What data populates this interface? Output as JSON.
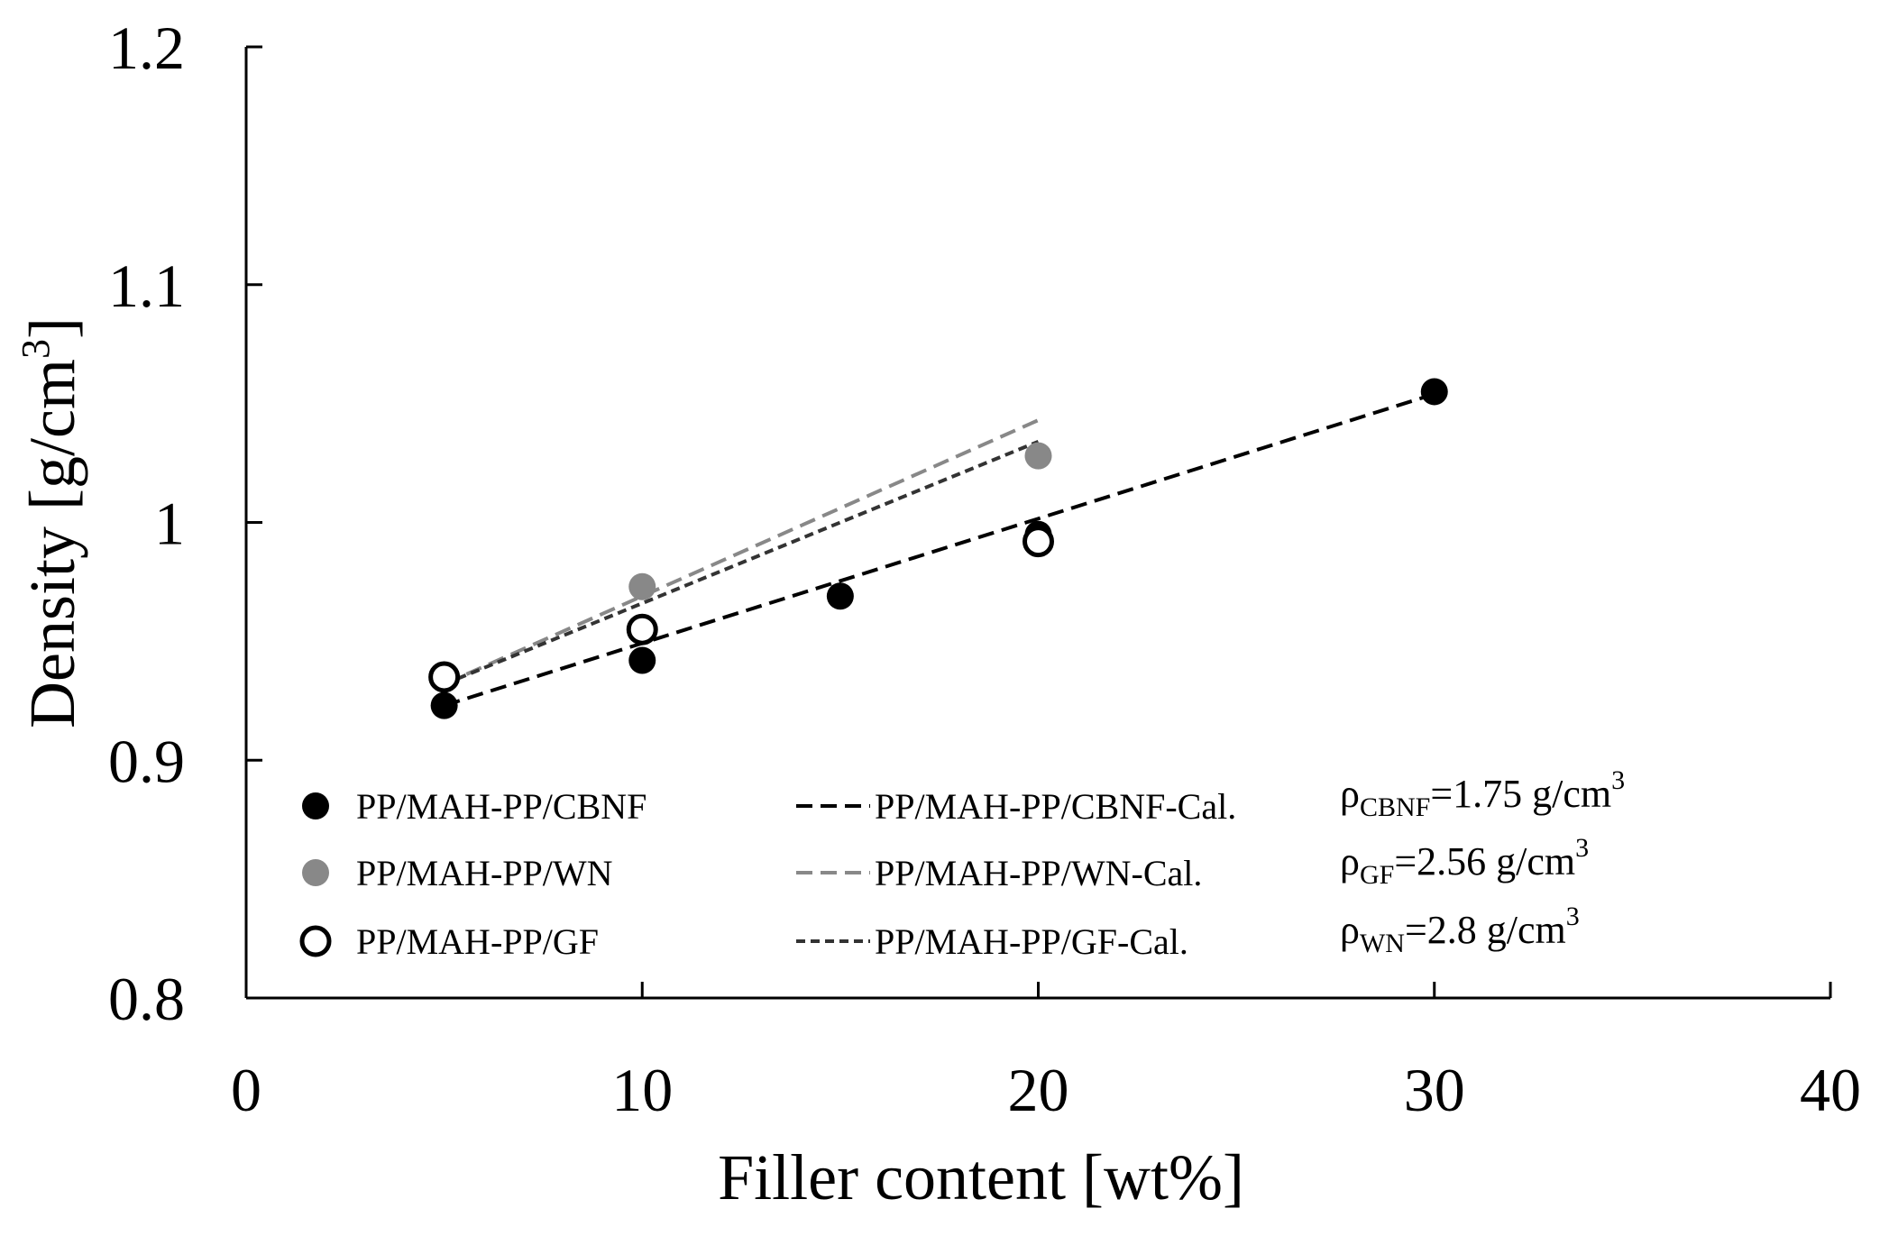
{
  "chart_data": {
    "type": "scatter",
    "xlabel": "Filler content [wt%]",
    "ylabel_main": "Density [g/cm",
    "ylabel_sup": "3",
    "ylabel_end": "]",
    "xlim": [
      0,
      40
    ],
    "ylim": [
      0.8,
      1.2
    ],
    "x_ticks": [
      0,
      10,
      20,
      30,
      40
    ],
    "x_tick_labels": [
      "0",
      "10",
      "20",
      "30",
      "40"
    ],
    "y_ticks": [
      0.8,
      0.9,
      1.0,
      1.1,
      1.2
    ],
    "y_tick_labels": [
      "0.8",
      "0.9",
      "1",
      "1.1",
      "1.2"
    ],
    "grid": false,
    "legend_position": "bottom-left, inside plot",
    "series": [
      {
        "name": "PP/MAH-PP/CBNF",
        "kind": "marker",
        "marker": "filled-circle",
        "color": "#000000",
        "x": [
          5,
          10,
          15,
          20,
          30
        ],
        "y": [
          0.923,
          0.942,
          0.969,
          0.995,
          1.055
        ]
      },
      {
        "name": "PP/MAH-PP/WN",
        "kind": "marker",
        "marker": "filled-circle",
        "color": "#888888",
        "x": [
          10,
          20
        ],
        "y": [
          0.973,
          1.028
        ]
      },
      {
        "name": "PP/MAH-PP/GF",
        "kind": "marker",
        "marker": "open-circle",
        "color": "#000000",
        "x": [
          5,
          10,
          20
        ],
        "y": [
          0.935,
          0.955,
          0.992
        ]
      },
      {
        "name": "PP/MAH-PP/CBNF-Cal.",
        "kind": "line",
        "dash": "long",
        "color": "#000000",
        "x": [
          5,
          30
        ],
        "y": [
          0.923,
          1.054
        ]
      },
      {
        "name": "PP/MAH-PP/WN-Cal.",
        "kind": "line",
        "dash": "long",
        "color": "#888888",
        "x": [
          5,
          20
        ],
        "y": [
          0.932,
          1.043
        ]
      },
      {
        "name": "PP/MAH-PP/GF-Cal.",
        "kind": "line",
        "dash": "short",
        "color": "#333333",
        "x": [
          5,
          20
        ],
        "y": [
          0.932,
          1.034
        ]
      }
    ],
    "annotations": [
      {
        "symbol": "ρ",
        "sub": "CBNF",
        "text": "=1.75 g/cm",
        "sup": "3"
      },
      {
        "symbol": "ρ",
        "sub": "GF",
        "text": "=2.56 g/cm",
        "sup": "3"
      },
      {
        "symbol": "ρ",
        "sub": "WN",
        "text": "=2.8 g/cm",
        "sup": "3"
      }
    ]
  }
}
